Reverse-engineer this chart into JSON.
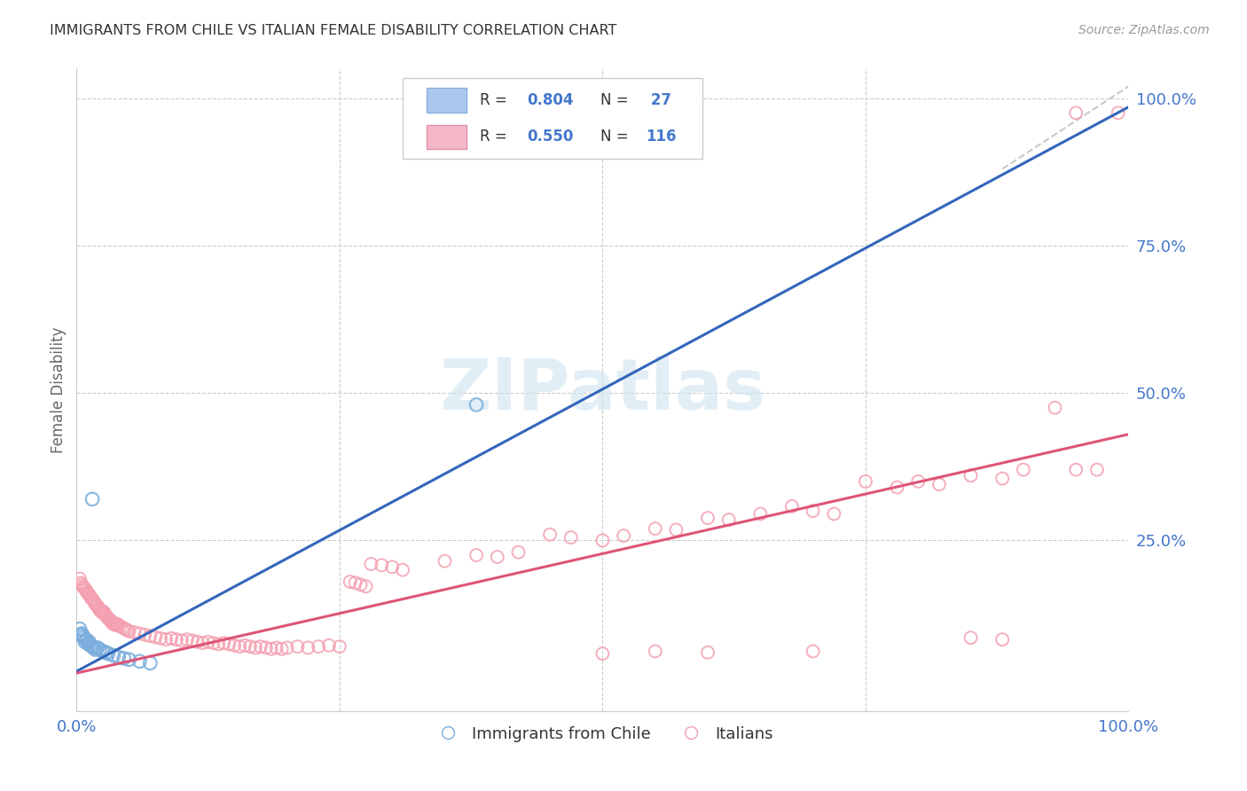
{
  "title": "IMMIGRANTS FROM CHILE VS ITALIAN FEMALE DISABILITY CORRELATION CHART",
  "source": "Source: ZipAtlas.com",
  "ylabel": "Female Disability",
  "blue_color": "#7aaddd",
  "pink_color": "#f4a0b0",
  "blue_line_color": "#3366bb",
  "pink_line_color": "#dd5577",
  "dashed_line_color": "#bbbbbb",
  "title_color": "#333333",
  "axis_label_color": "#4477cc",
  "watermark_color": "#d0e4f0",
  "blue_scatter": [
    [
      0.003,
      0.1
    ],
    [
      0.004,
      0.09
    ],
    [
      0.005,
      0.092
    ],
    [
      0.006,
      0.088
    ],
    [
      0.007,
      0.085
    ],
    [
      0.008,
      0.078
    ],
    [
      0.009,
      0.082
    ],
    [
      0.01,
      0.08
    ],
    [
      0.011,
      0.075
    ],
    [
      0.012,
      0.078
    ],
    [
      0.013,
      0.072
    ],
    [
      0.015,
      0.07
    ],
    [
      0.016,
      0.068
    ],
    [
      0.018,
      0.065
    ],
    [
      0.02,
      0.068
    ],
    [
      0.022,
      0.065
    ],
    [
      0.025,
      0.062
    ],
    [
      0.028,
      0.06
    ],
    [
      0.03,
      0.058
    ],
    [
      0.035,
      0.055
    ],
    [
      0.04,
      0.052
    ],
    [
      0.045,
      0.05
    ],
    [
      0.05,
      0.048
    ],
    [
      0.06,
      0.045
    ],
    [
      0.07,
      0.042
    ],
    [
      0.015,
      0.32
    ],
    [
      0.38,
      0.48
    ]
  ],
  "pink_scatter": [
    [
      0.003,
      0.185
    ],
    [
      0.004,
      0.178
    ],
    [
      0.005,
      0.175
    ],
    [
      0.006,
      0.172
    ],
    [
      0.007,
      0.17
    ],
    [
      0.008,
      0.168
    ],
    [
      0.009,
      0.165
    ],
    [
      0.01,
      0.162
    ],
    [
      0.011,
      0.16
    ],
    [
      0.012,
      0.158
    ],
    [
      0.013,
      0.155
    ],
    [
      0.014,
      0.152
    ],
    [
      0.015,
      0.15
    ],
    [
      0.016,
      0.148
    ],
    [
      0.017,
      0.145
    ],
    [
      0.018,
      0.142
    ],
    [
      0.019,
      0.14
    ],
    [
      0.02,
      0.138
    ],
    [
      0.021,
      0.135
    ],
    [
      0.022,
      0.132
    ],
    [
      0.023,
      0.13
    ],
    [
      0.024,
      0.128
    ],
    [
      0.025,
      0.13
    ],
    [
      0.026,
      0.128
    ],
    [
      0.027,
      0.125
    ],
    [
      0.028,
      0.122
    ],
    [
      0.029,
      0.12
    ],
    [
      0.03,
      0.118
    ],
    [
      0.031,
      0.116
    ],
    [
      0.032,
      0.115
    ],
    [
      0.033,
      0.112
    ],
    [
      0.034,
      0.11
    ],
    [
      0.035,
      0.108
    ],
    [
      0.036,
      0.11
    ],
    [
      0.037,
      0.108
    ],
    [
      0.038,
      0.106
    ],
    [
      0.039,
      0.108
    ],
    [
      0.04,
      0.106
    ],
    [
      0.042,
      0.104
    ],
    [
      0.044,
      0.102
    ],
    [
      0.046,
      0.1
    ],
    [
      0.048,
      0.098
    ],
    [
      0.05,
      0.096
    ],
    [
      0.055,
      0.094
    ],
    [
      0.06,
      0.092
    ],
    [
      0.065,
      0.09
    ],
    [
      0.07,
      0.088
    ],
    [
      0.075,
      0.086
    ],
    [
      0.08,
      0.084
    ],
    [
      0.085,
      0.082
    ],
    [
      0.09,
      0.084
    ],
    [
      0.095,
      0.082
    ],
    [
      0.1,
      0.08
    ],
    [
      0.105,
      0.082
    ],
    [
      0.11,
      0.08
    ],
    [
      0.115,
      0.078
    ],
    [
      0.12,
      0.076
    ],
    [
      0.125,
      0.078
    ],
    [
      0.13,
      0.076
    ],
    [
      0.135,
      0.074
    ],
    [
      0.14,
      0.076
    ],
    [
      0.145,
      0.074
    ],
    [
      0.15,
      0.072
    ],
    [
      0.155,
      0.07
    ],
    [
      0.16,
      0.072
    ],
    [
      0.165,
      0.07
    ],
    [
      0.17,
      0.068
    ],
    [
      0.175,
      0.07
    ],
    [
      0.18,
      0.068
    ],
    [
      0.185,
      0.066
    ],
    [
      0.19,
      0.068
    ],
    [
      0.195,
      0.066
    ],
    [
      0.2,
      0.068
    ],
    [
      0.21,
      0.07
    ],
    [
      0.22,
      0.068
    ],
    [
      0.23,
      0.07
    ],
    [
      0.24,
      0.072
    ],
    [
      0.25,
      0.07
    ],
    [
      0.26,
      0.18
    ],
    [
      0.265,
      0.178
    ],
    [
      0.27,
      0.175
    ],
    [
      0.275,
      0.172
    ],
    [
      0.28,
      0.21
    ],
    [
      0.29,
      0.208
    ],
    [
      0.3,
      0.205
    ],
    [
      0.31,
      0.2
    ],
    [
      0.35,
      0.215
    ],
    [
      0.38,
      0.225
    ],
    [
      0.4,
      0.222
    ],
    [
      0.42,
      0.23
    ],
    [
      0.45,
      0.26
    ],
    [
      0.47,
      0.255
    ],
    [
      0.5,
      0.25
    ],
    [
      0.52,
      0.258
    ],
    [
      0.55,
      0.27
    ],
    [
      0.57,
      0.268
    ],
    [
      0.6,
      0.288
    ],
    [
      0.62,
      0.285
    ],
    [
      0.65,
      0.295
    ],
    [
      0.68,
      0.308
    ],
    [
      0.7,
      0.3
    ],
    [
      0.72,
      0.295
    ],
    [
      0.75,
      0.35
    ],
    [
      0.78,
      0.34
    ],
    [
      0.8,
      0.35
    ],
    [
      0.82,
      0.345
    ],
    [
      0.85,
      0.36
    ],
    [
      0.88,
      0.355
    ],
    [
      0.9,
      0.37
    ],
    [
      0.93,
      0.475
    ],
    [
      0.95,
      0.37
    ],
    [
      0.97,
      0.37
    ],
    [
      0.5,
      0.058
    ],
    [
      0.55,
      0.062
    ],
    [
      0.6,
      0.06
    ],
    [
      0.7,
      0.062
    ],
    [
      0.88,
      0.082
    ],
    [
      0.85,
      0.085
    ],
    [
      0.95,
      0.975
    ],
    [
      0.99,
      0.975
    ]
  ],
  "blue_line": {
    "x0": 0.0,
    "x1": 1.0,
    "y0": 0.028,
    "y1": 0.985
  },
  "blue_line_dashed": {
    "x0": 0.88,
    "x1": 1.0,
    "y0": 0.88,
    "y1": 1.02
  },
  "pink_line": {
    "x0": 0.0,
    "x1": 1.0,
    "y0": 0.025,
    "y1": 0.43
  },
  "xlim": [
    0.0,
    1.0
  ],
  "ylim": [
    -0.04,
    1.05
  ],
  "yticks": [
    0.0,
    0.25,
    0.5,
    0.75,
    1.0
  ],
  "yticklabels_right": [
    "",
    "25.0%",
    "50.0%",
    "75.0%",
    "100.0%"
  ],
  "xticks": [
    0.0,
    0.25,
    0.5,
    0.75,
    1.0
  ],
  "xticklabels": [
    "0.0%",
    "",
    "",
    "",
    "100.0%"
  ]
}
